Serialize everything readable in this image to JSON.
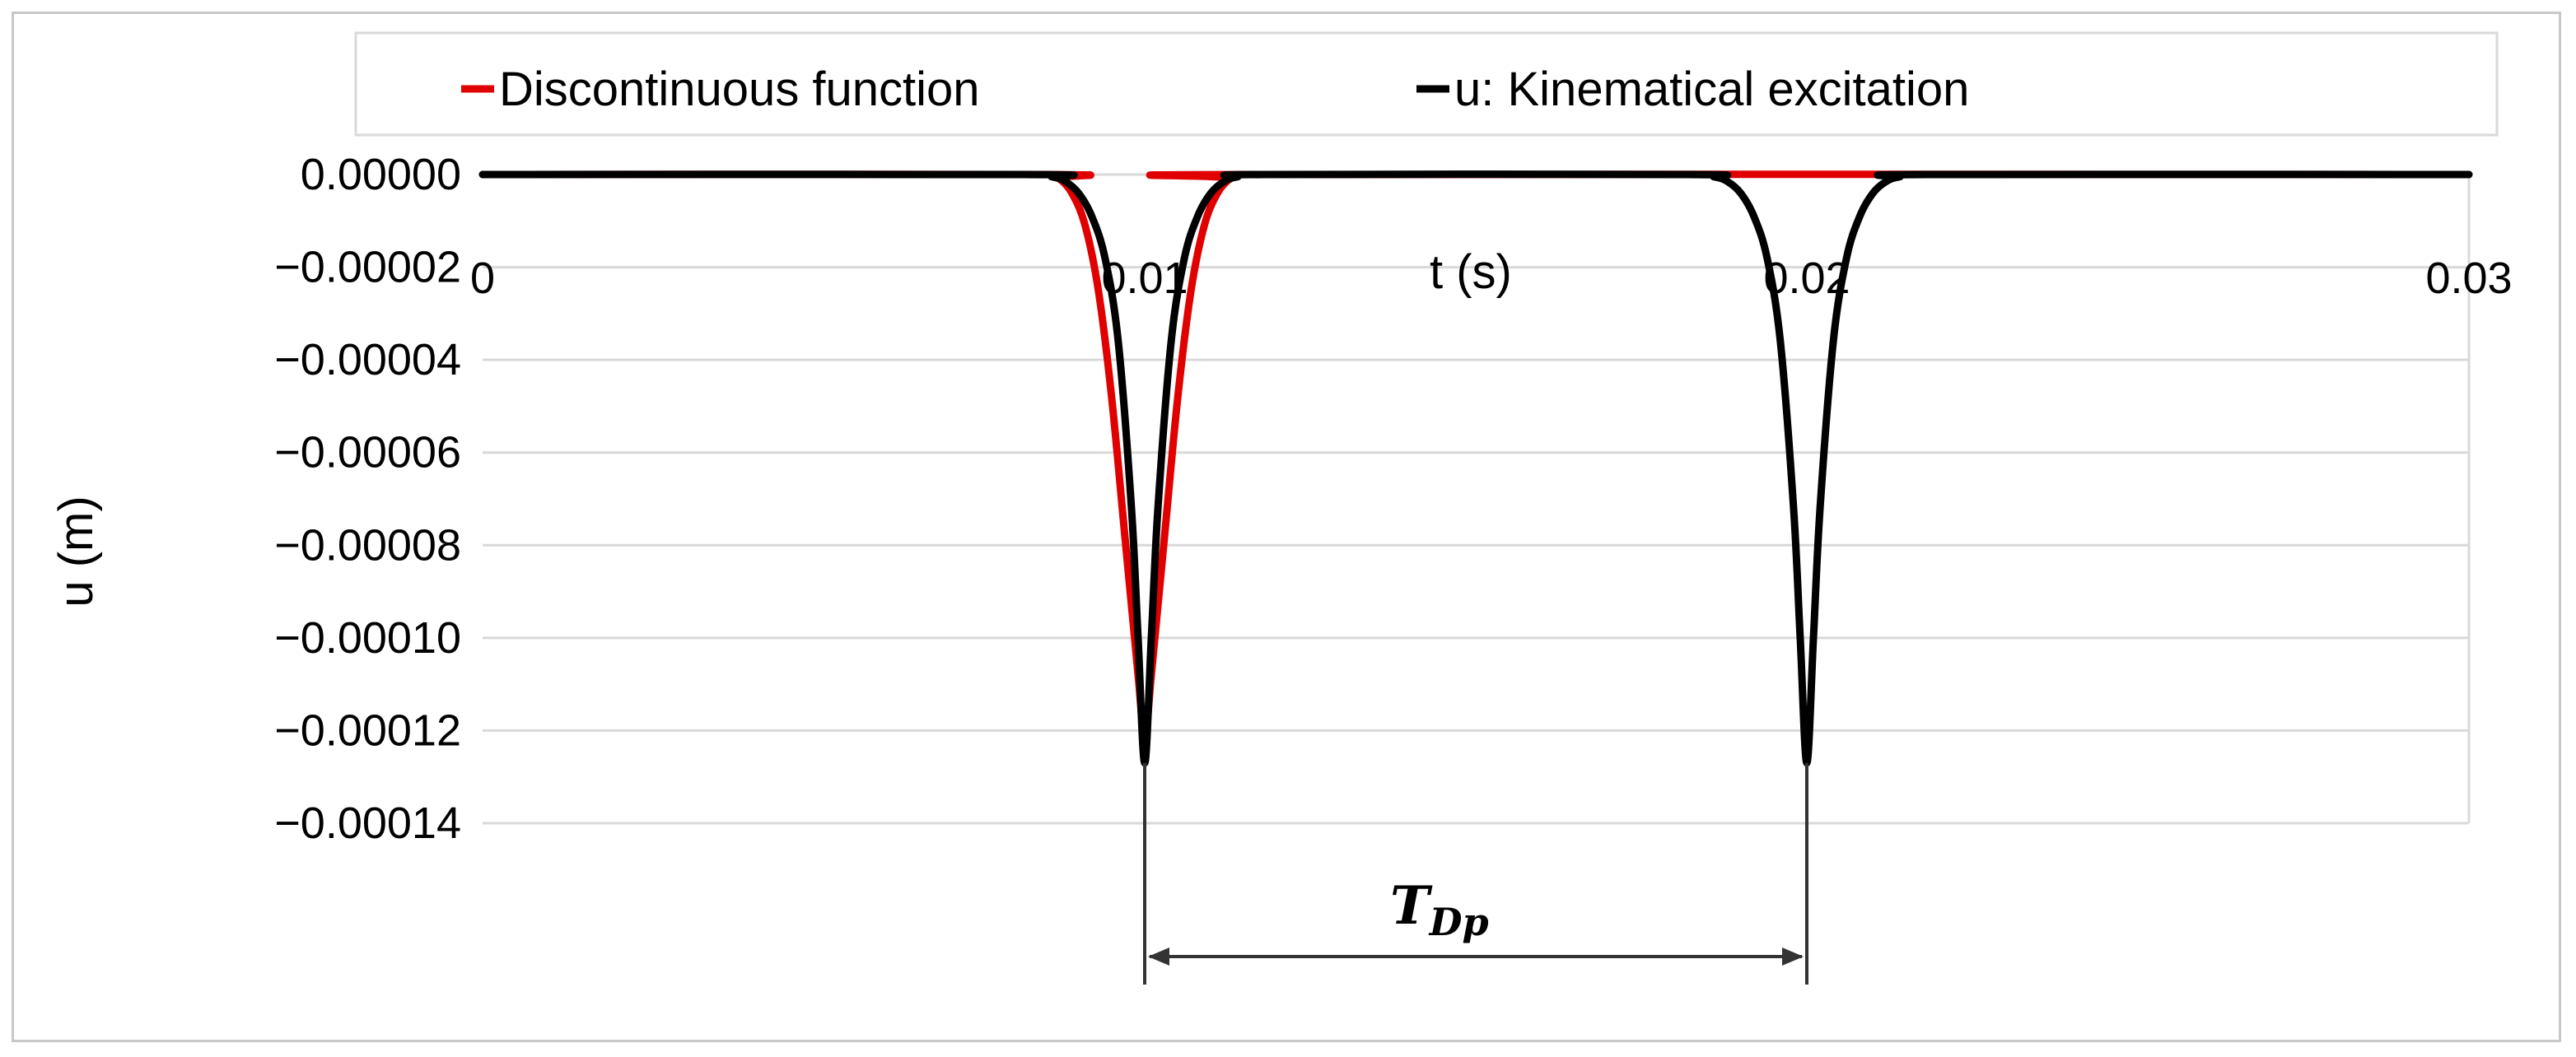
{
  "chart_data": {
    "type": "line",
    "title": "",
    "xlabel": "t (s)",
    "ylabel": "u (m)",
    "xlim": [
      0,
      0.03
    ],
    "ylim": [
      -0.00014,
      0
    ],
    "x_ticks": [
      "0",
      "0.01",
      "0.02",
      "0.03"
    ],
    "y_ticks": [
      "0.00000",
      "−0.00002",
      "−0.00004",
      "−0.00006",
      "−0.00008",
      "−0.00010",
      "−0.00012",
      "−0.00014"
    ],
    "grid": "horizontal",
    "legend_position": "top",
    "series": [
      {
        "name": "Discontinuous function",
        "color": "#e00000",
        "x": [
          0.0,
          0.0085,
          0.0087,
          0.0089,
          0.0091,
          0.0093,
          0.0095,
          0.0097,
          0.0099,
          0.01,
          0.0101,
          0.0103,
          0.0105,
          0.0107,
          0.0109,
          0.0111,
          0.0113,
          0.0115,
          0.03
        ],
        "y": [
          0.0,
          0.0,
          -8e-07,
          -4e-06,
          -1.1e-05,
          -2.5e-05,
          -4.8e-05,
          -7.8e-05,
          -0.000108,
          -0.000122,
          -0.000108,
          -7.8e-05,
          -4.8e-05,
          -2.5e-05,
          -1.1e-05,
          -4e-06,
          -8e-07,
          0.0,
          0.0
        ]
      },
      {
        "name": "u: Kinematical excitation",
        "color": "#000000",
        "x": [
          0.0,
          0.0082,
          0.0086,
          0.0088,
          0.009,
          0.0092,
          0.0094,
          0.0096,
          0.0098,
          0.0099,
          0.01,
          0.0101,
          0.0102,
          0.0104,
          0.0106,
          0.0108,
          0.011,
          0.0112,
          0.0114,
          0.0118,
          0.0182,
          0.0186,
          0.0188,
          0.019,
          0.0192,
          0.0194,
          0.0196,
          0.0198,
          0.0199,
          0.02,
          0.0201,
          0.0202,
          0.0204,
          0.0206,
          0.0208,
          0.021,
          0.0212,
          0.0214,
          0.0218,
          0.03
        ],
        "y": [
          0.0,
          0.0,
          -5e-07,
          -1.5e-06,
          -4e-06,
          -9e-06,
          -1.8e-05,
          -3.6e-05,
          -7.2e-05,
          -0.0001,
          -0.000127,
          -0.0001,
          -7.2e-05,
          -3.6e-05,
          -1.8e-05,
          -9e-06,
          -4e-06,
          -1.5e-06,
          -5e-07,
          0.0,
          0.0,
          -5e-07,
          -1.5e-06,
          -4e-06,
          -9e-06,
          -1.8e-05,
          -3.6e-05,
          -7.2e-05,
          -0.0001,
          -0.000127,
          -0.0001,
          -7.2e-05,
          -3.6e-05,
          -1.8e-05,
          -9e-06,
          -4e-06,
          -1.5e-06,
          -5e-07,
          0.0,
          0.0
        ]
      }
    ],
    "annotation": {
      "label": "T",
      "subscript": "Dp",
      "x_start": 0.01,
      "x_end": 0.02
    }
  }
}
